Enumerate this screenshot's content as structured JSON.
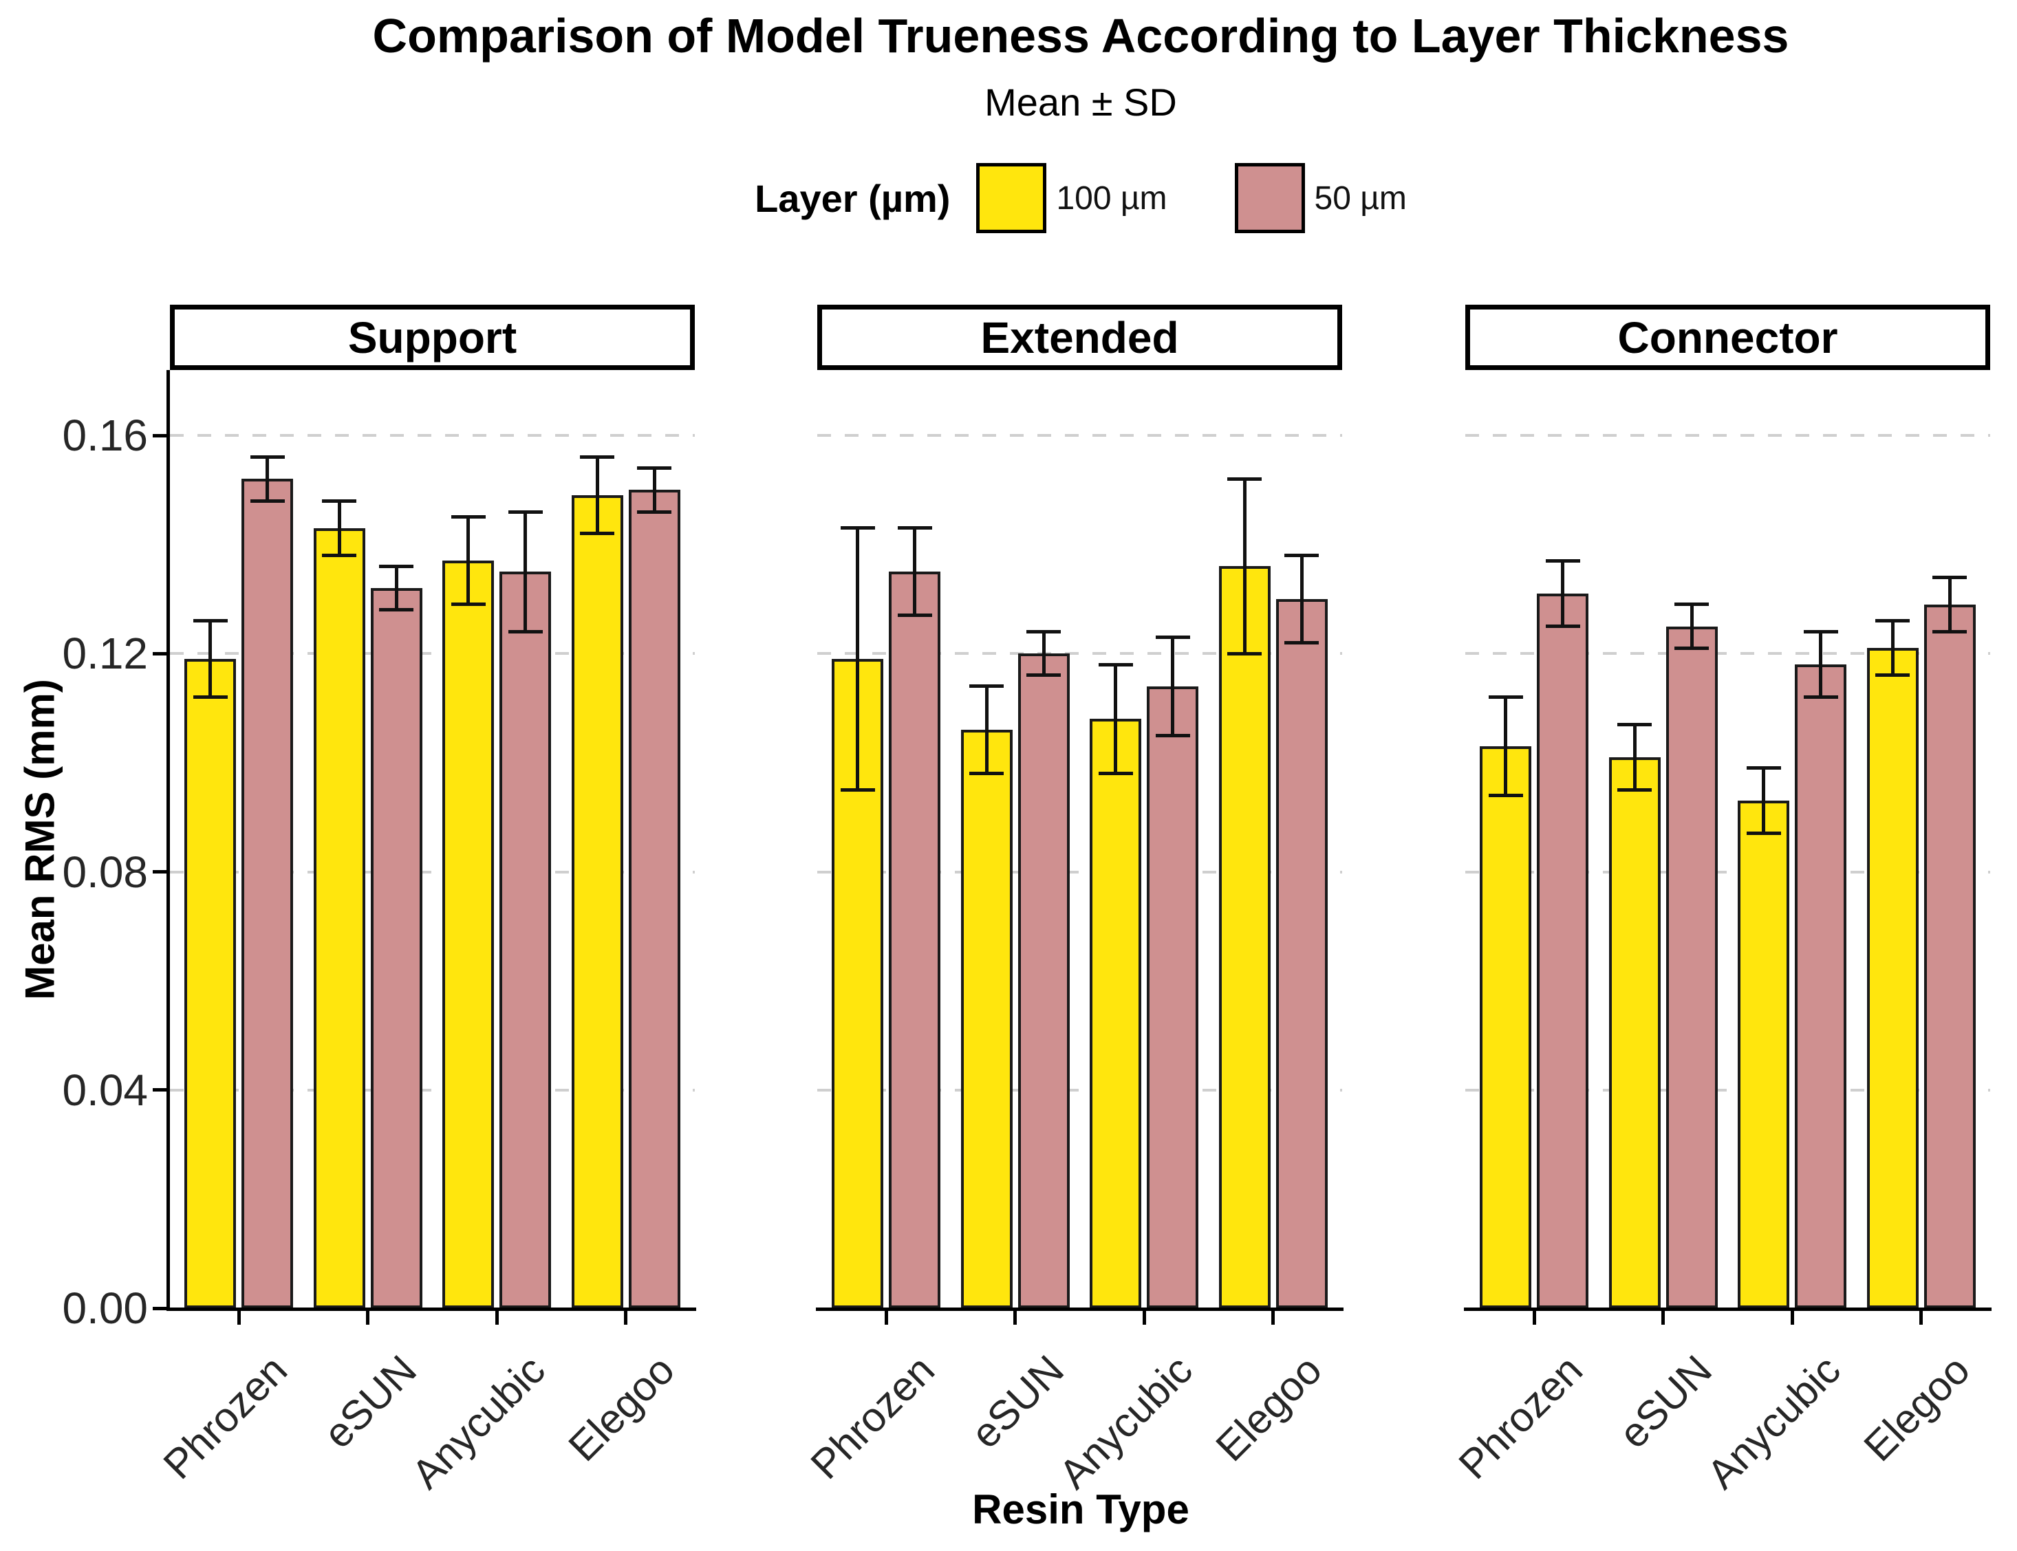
{
  "title": "Comparison of Model Trueness According to Layer Thickness",
  "subtitle": "Mean ± SD",
  "legend": {
    "title": "Layer (µm)",
    "items": [
      {
        "label": "100 µm",
        "color": "#FFE60D"
      },
      {
        "label": "50 µm",
        "color": "#CF9090"
      }
    ]
  },
  "axes": {
    "x_title": "Resin Type",
    "y_title": "Mean RMS (mm)",
    "y_tick_labels": [
      "0.00",
      "0.04",
      "0.08",
      "0.12",
      "0.16"
    ]
  },
  "chart_data": {
    "type": "bar",
    "variant": "faceted grouped bars with ±SD error bars (caps), black outlines",
    "title": "Comparison of Model Trueness According to Layer Thickness",
    "subtitle": "Mean ± SD",
    "xlabel": "Resin Type",
    "ylabel": "Mean RMS (mm)",
    "ylim": [
      0,
      0.172
    ],
    "yticks": [
      0,
      0.04,
      0.08,
      0.12,
      0.16
    ],
    "grid": "horizontal light-gray dashed lines at each y tick",
    "legend_position": "top-center",
    "facets": [
      "Support",
      "Extended",
      "Connector"
    ],
    "categories": [
      "Phrozen",
      "eSUN",
      "Anycubic",
      "Elegoo"
    ],
    "series": [
      {
        "name": "100 µm",
        "color": "#FFE60D"
      },
      {
        "name": "50 µm",
        "color": "#CF9090"
      }
    ],
    "colors": {
      "bar_outline": "#1a1a1a",
      "error_bar": "#111111",
      "gridline": "#cfcfcf",
      "axis": "#000000"
    },
    "facets_data": [
      {
        "facet": "Support",
        "series": [
          {
            "name": "100 µm",
            "means": [
              0.119,
              0.143,
              0.137,
              0.149
            ],
            "sds": [
              0.007,
              0.005,
              0.008,
              0.007
            ]
          },
          {
            "name": "50 µm",
            "means": [
              0.152,
              0.132,
              0.135,
              0.15
            ],
            "sds": [
              0.004,
              0.004,
              0.011,
              0.004
            ]
          }
        ]
      },
      {
        "facet": "Extended",
        "series": [
          {
            "name": "100 µm",
            "means": [
              0.119,
              0.106,
              0.108,
              0.136
            ],
            "sds": [
              0.024,
              0.008,
              0.01,
              0.016
            ]
          },
          {
            "name": "50 µm",
            "means": [
              0.135,
              0.12,
              0.114,
              0.13
            ],
            "sds": [
              0.008,
              0.004,
              0.009,
              0.008
            ]
          }
        ]
      },
      {
        "facet": "Connector",
        "series": [
          {
            "name": "100 µm",
            "means": [
              0.103,
              0.101,
              0.093,
              0.121
            ],
            "sds": [
              0.009,
              0.006,
              0.006,
              0.005
            ]
          },
          {
            "name": "50 µm",
            "means": [
              0.131,
              0.125,
              0.118,
              0.129
            ],
            "sds": [
              0.006,
              0.004,
              0.006,
              0.005
            ]
          }
        ]
      }
    ]
  }
}
